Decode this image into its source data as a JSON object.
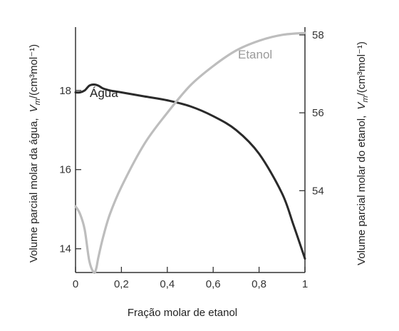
{
  "chart_data": {
    "type": "line",
    "xlabel": "Fração molar de etanol",
    "xlim": [
      0,
      1
    ],
    "x_ticks": [
      "0",
      "0,2",
      "0,4",
      "0,6",
      "0,8",
      "1"
    ],
    "y_left": {
      "label_prefix": "Volume parcial molar da água,",
      "label_symbol": "V",
      "label_sub": "m",
      "label_unit": "/(cm³mol⁻¹)",
      "ylim": [
        13.4,
        19.6
      ],
      "ticks": [
        "14",
        "16",
        "18"
      ]
    },
    "y_right": {
      "label_prefix": "Volume parcial molar do etanol,",
      "label_symbol": "V",
      "label_sub": "m",
      "label_unit": "/(cm³mol⁻¹)",
      "ylim": [
        51.9,
        58.2
      ],
      "ticks": [
        "54",
        "56",
        "58"
      ]
    },
    "series": [
      {
        "name": "Água",
        "axis": "left",
        "color": "#2a2a2a",
        "x": [
          0,
          0.02,
          0.04,
          0.06,
          0.08,
          0.1,
          0.12,
          0.15,
          0.2,
          0.3,
          0.4,
          0.5,
          0.6,
          0.7,
          0.8,
          0.9,
          0.95,
          1.0
        ],
        "y": [
          17.95,
          17.95,
          18.0,
          18.12,
          18.15,
          18.12,
          18.05,
          18.0,
          17.95,
          17.85,
          17.75,
          17.6,
          17.35,
          17.0,
          16.4,
          15.4,
          14.6,
          13.75
        ]
      },
      {
        "name": "Etanol",
        "axis": "right",
        "color": "#bdbdbd",
        "x": [
          0,
          0.02,
          0.04,
          0.06,
          0.08,
          0.09,
          0.1,
          0.12,
          0.15,
          0.2,
          0.3,
          0.4,
          0.5,
          0.6,
          0.7,
          0.8,
          0.9,
          1.0
        ],
        "y": [
          53.6,
          53.4,
          53.0,
          52.2,
          51.9,
          52.0,
          52.3,
          52.8,
          53.4,
          54.1,
          55.2,
          56.0,
          56.7,
          57.2,
          57.6,
          57.85,
          58.0,
          58.05
        ]
      }
    ],
    "grid": false,
    "legend": "none (series labelled inline)"
  }
}
